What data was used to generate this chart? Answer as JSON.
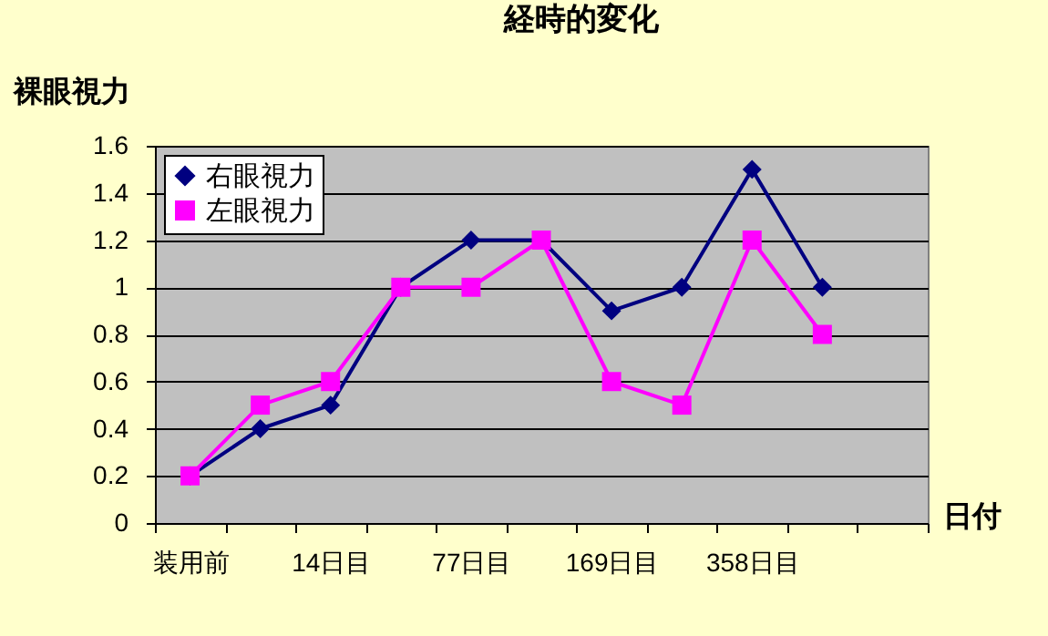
{
  "chart_data": {
    "type": "line",
    "title": "経時的変化",
    "xlabel": "日付",
    "ylabel": "裸眼視力",
    "categories": [
      "装用前",
      null,
      "14日目",
      null,
      "77日目",
      null,
      "169日目",
      null,
      "358日目",
      null,
      null
    ],
    "series": [
      {
        "name": "右眼視力",
        "color": "#000080",
        "marker": "diamond",
        "values": [
          0.2,
          0.4,
          0.5,
          1.0,
          1.2,
          1.2,
          0.9,
          1.0,
          1.5,
          1.0,
          null
        ]
      },
      {
        "name": "左眼視力",
        "color": "#ff00ff",
        "marker": "square",
        "values": [
          0.2,
          0.5,
          0.6,
          1.0,
          1.0,
          1.2,
          0.6,
          0.5,
          1.2,
          0.8,
          null
        ]
      }
    ],
    "ylim": [
      0,
      1.6
    ],
    "yticks": [
      0,
      0.2,
      0.4,
      0.6,
      0.8,
      1,
      1.2,
      1.4,
      1.6
    ],
    "grid": "y",
    "legend": "top left",
    "line_style": "solid"
  }
}
